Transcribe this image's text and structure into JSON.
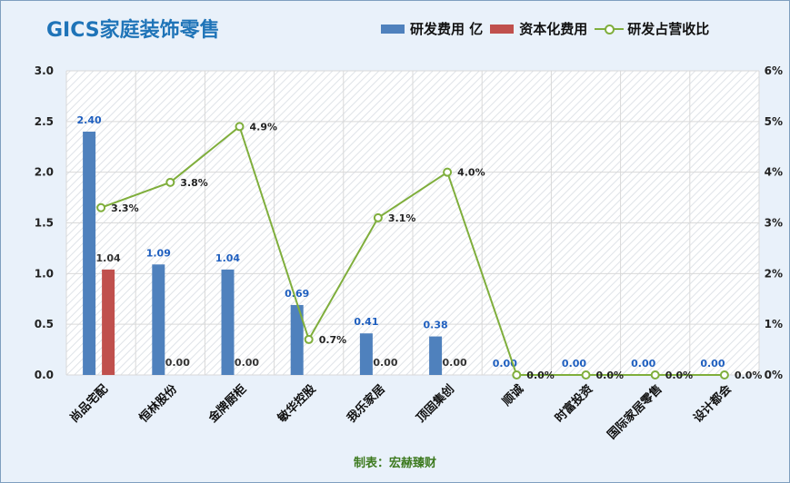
{
  "chart_data": {
    "type": "bar",
    "title": "GICS家庭装饰零售",
    "categories": [
      "尚品宅配",
      "恒林股份",
      "金牌厨柜",
      "敏华控股",
      "我乐家居",
      "顶固集创",
      "顺诚",
      "时富投资",
      "国际家居零售",
      "设计都会"
    ],
    "series": [
      {
        "name": "研发费用 亿",
        "type": "bar",
        "axis": "left",
        "color": "#4f81bd",
        "values": [
          2.4,
          1.09,
          1.04,
          0.69,
          0.41,
          0.38,
          0.0,
          0.0,
          0.0,
          0.0
        ],
        "labels": [
          "2.40",
          "1.09",
          "1.04",
          "0.69",
          "0.41",
          "0.38",
          "0.00",
          "0.00",
          "0.00",
          "0.00"
        ]
      },
      {
        "name": "资本化费用",
        "type": "bar",
        "axis": "left",
        "color": "#c0504d",
        "values": [
          1.04,
          0.0,
          0.0,
          null,
          0.0,
          0.0,
          null,
          null,
          null,
          null
        ],
        "labels": [
          "1.04",
          "0.00",
          "0.00",
          "",
          "0.00",
          "0.00",
          "",
          "",
          "",
          ""
        ]
      },
      {
        "name": "研发占营收比",
        "type": "line",
        "axis": "right",
        "color": "#7fae3c",
        "values": [
          3.3,
          3.8,
          4.9,
          0.7,
          3.1,
          4.0,
          0.0,
          0.0,
          0.0,
          0.0
        ],
        "labels": [
          "3.3%",
          "3.8%",
          "4.9%",
          "0.7%",
          "3.1%",
          "4.0%",
          "0.0%",
          "0.0%",
          "0.0%",
          "0.0%"
        ]
      }
    ],
    "y_left": {
      "min": 0,
      "max": 3.0,
      "ticks": [
        "0.0",
        "0.5",
        "1.0",
        "1.5",
        "2.0",
        "2.5",
        "3.0"
      ]
    },
    "y_right": {
      "min": 0,
      "max": 6,
      "ticks": [
        "0%",
        "1%",
        "2%",
        "3%",
        "4%",
        "5%",
        "6%"
      ]
    },
    "grid": true,
    "legend_position": "top-right",
    "footer": "制表：宏赫臻财"
  }
}
